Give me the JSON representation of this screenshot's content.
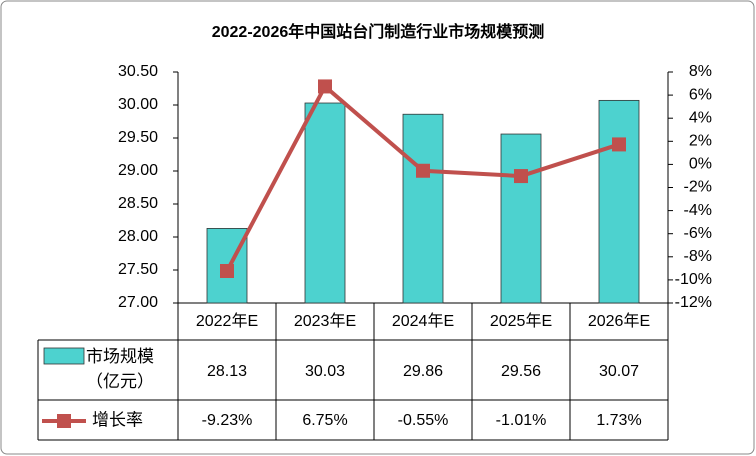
{
  "chart_data": {
    "type": "bar-line",
    "title": "2022-2026年中国站台门制造行业市场规模预测",
    "categories": [
      "2022年E",
      "2023年E",
      "2024年E",
      "2025年E",
      "2026年E"
    ],
    "series": [
      {
        "name": "市场规模（亿元）",
        "type": "bar",
        "color": "#4dd2cf",
        "values": [
          28.13,
          30.03,
          29.86,
          29.56,
          30.07
        ]
      },
      {
        "name": "增长率",
        "type": "line",
        "axis": "y2",
        "color": "#c0504d",
        "values": [
          -9.23,
          6.75,
          -0.55,
          -1.01,
          1.73
        ],
        "value_labels": [
          "-9.23%",
          "6.75%",
          "-0.55%",
          "-1.01%",
          "1.73%"
        ]
      }
    ],
    "ylim": [
      27,
      30.5
    ],
    "yticks": [
      {
        "value": 27,
        "label": "27.00"
      },
      {
        "value": 27.5,
        "label": "27.50"
      },
      {
        "value": 28,
        "label": "28.00"
      },
      {
        "value": 28.5,
        "label": "28.50"
      },
      {
        "value": 29,
        "label": "29.00"
      },
      {
        "value": 29.5,
        "label": "29.50"
      },
      {
        "value": 30,
        "label": "30.00"
      },
      {
        "value": 30.5,
        "label": "30.50"
      }
    ],
    "y2lim": [
      -12,
      8
    ],
    "y2ticks": [
      {
        "value": -12,
        "label": "-12%"
      },
      {
        "value": -10,
        "label": "-10%"
      },
      {
        "value": -8,
        "label": "-8%"
      },
      {
        "value": -6,
        "label": "-6%"
      },
      {
        "value": -4,
        "label": "-4%"
      },
      {
        "value": -2,
        "label": "-2%"
      },
      {
        "value": 0,
        "label": "0%"
      },
      {
        "value": 2,
        "label": "2%"
      },
      {
        "value": 4,
        "label": "4%"
      },
      {
        "value": 6,
        "label": "6%"
      },
      {
        "value": 8,
        "label": "8%"
      }
    ],
    "data_table": true
  }
}
